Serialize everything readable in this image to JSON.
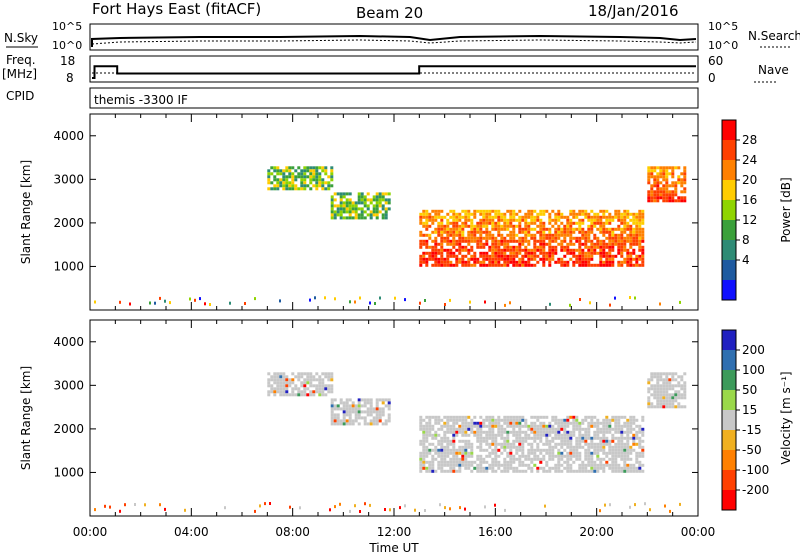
{
  "header": {
    "station": "Fort Hays East (fitACF)",
    "beam": "Beam 20",
    "date": "18/Jan/2016"
  },
  "params": {
    "nsky_label": "N.Sky",
    "nsearch_label": "N.Search",
    "freq_label": "Freq.",
    "freq_unit": "[MHz]",
    "nave_label": "Nave",
    "cpid_label": "CPID",
    "cpid_text": "themis -3300 IF",
    "nsky_ticks": [
      "10^5",
      "10^0"
    ],
    "nsearch_ticks": [
      "10^5",
      "10^0"
    ],
    "freq_ticks": [
      "18",
      "8"
    ],
    "nave_ticks": [
      "60",
      "0"
    ],
    "freq_steps": [
      {
        "time": 0.0,
        "freq": 8
      },
      {
        "time": 0.1,
        "freq": 14.5
      },
      {
        "time": 1.0,
        "freq": 10.5
      },
      {
        "time": 13.0,
        "freq": 14.5
      },
      {
        "time": 24.0,
        "freq": 14.5
      }
    ]
  },
  "chart_data": [
    {
      "type": "heatmap",
      "name": "power",
      "ylabel": "Slant Range [km]",
      "xlabel": "Time UT",
      "xlim": [
        0,
        24
      ],
      "ylim": [
        0,
        4500
      ],
      "x_ticks": [
        "00:00",
        "04:00",
        "08:00",
        "12:00",
        "16:00",
        "20:00",
        "00:00"
      ],
      "y_ticks": [
        1000,
        2000,
        3000,
        4000
      ],
      "colorbar": {
        "label": "Power [dB]",
        "ticks": [
          "28",
          "24",
          "20",
          "16",
          "12",
          "8",
          "4"
        ],
        "colors": [
          "#ff0000",
          "#ff4000",
          "#ff8000",
          "#ffcc00",
          "#8fd400",
          "#3aa03a",
          "#2e8b75",
          "#1e5aa0",
          "#1010ff"
        ]
      },
      "regions": [
        {
          "t_start": 7.0,
          "t_end": 9.5,
          "r_low": 2800,
          "r_high": 3300,
          "level": "mid"
        },
        {
          "t_start": 9.5,
          "t_end": 11.8,
          "r_low": 2100,
          "r_high": 2700,
          "level": "mid"
        },
        {
          "t_start": 13.0,
          "t_end": 21.8,
          "r_low": 1000,
          "r_high": 2300,
          "level": "high"
        },
        {
          "t_start": 22.0,
          "t_end": 23.5,
          "r_low": 2500,
          "r_high": 3300,
          "level": "high"
        }
      ]
    },
    {
      "type": "heatmap",
      "name": "velocity",
      "ylabel": "Slant Range [km]",
      "xlabel": "Time UT",
      "xlim": [
        0,
        24
      ],
      "ylim": [
        0,
        4500
      ],
      "x_ticks": [
        "00:00",
        "04:00",
        "08:00",
        "12:00",
        "16:00",
        "20:00",
        "00:00"
      ],
      "y_ticks": [
        1000,
        2000,
        3000,
        4000
      ],
      "colorbar": {
        "label": "Velocity [m s⁻¹]",
        "ticks": [
          "200",
          "100",
          "50",
          "15",
          "-15",
          "-50",
          "-100",
          "-200"
        ],
        "colors": [
          "#2020c0",
          "#2f6fb0",
          "#3c9a5a",
          "#9ad84a",
          "#c8c8c8",
          "#f0b020",
          "#ff8000",
          "#ff4000",
          "#ff0000"
        ]
      },
      "regions": [
        {
          "t_start": 7.0,
          "t_end": 9.5,
          "r_low": 2800,
          "r_high": 3300,
          "level": "ground"
        },
        {
          "t_start": 9.5,
          "t_end": 11.8,
          "r_low": 2100,
          "r_high": 2700,
          "level": "ground"
        },
        {
          "t_start": 13.0,
          "t_end": 21.8,
          "r_low": 1000,
          "r_high": 2300,
          "level": "ground"
        },
        {
          "t_start": 22.0,
          "t_end": 23.5,
          "r_low": 2500,
          "r_high": 3300,
          "level": "ground"
        }
      ]
    }
  ]
}
